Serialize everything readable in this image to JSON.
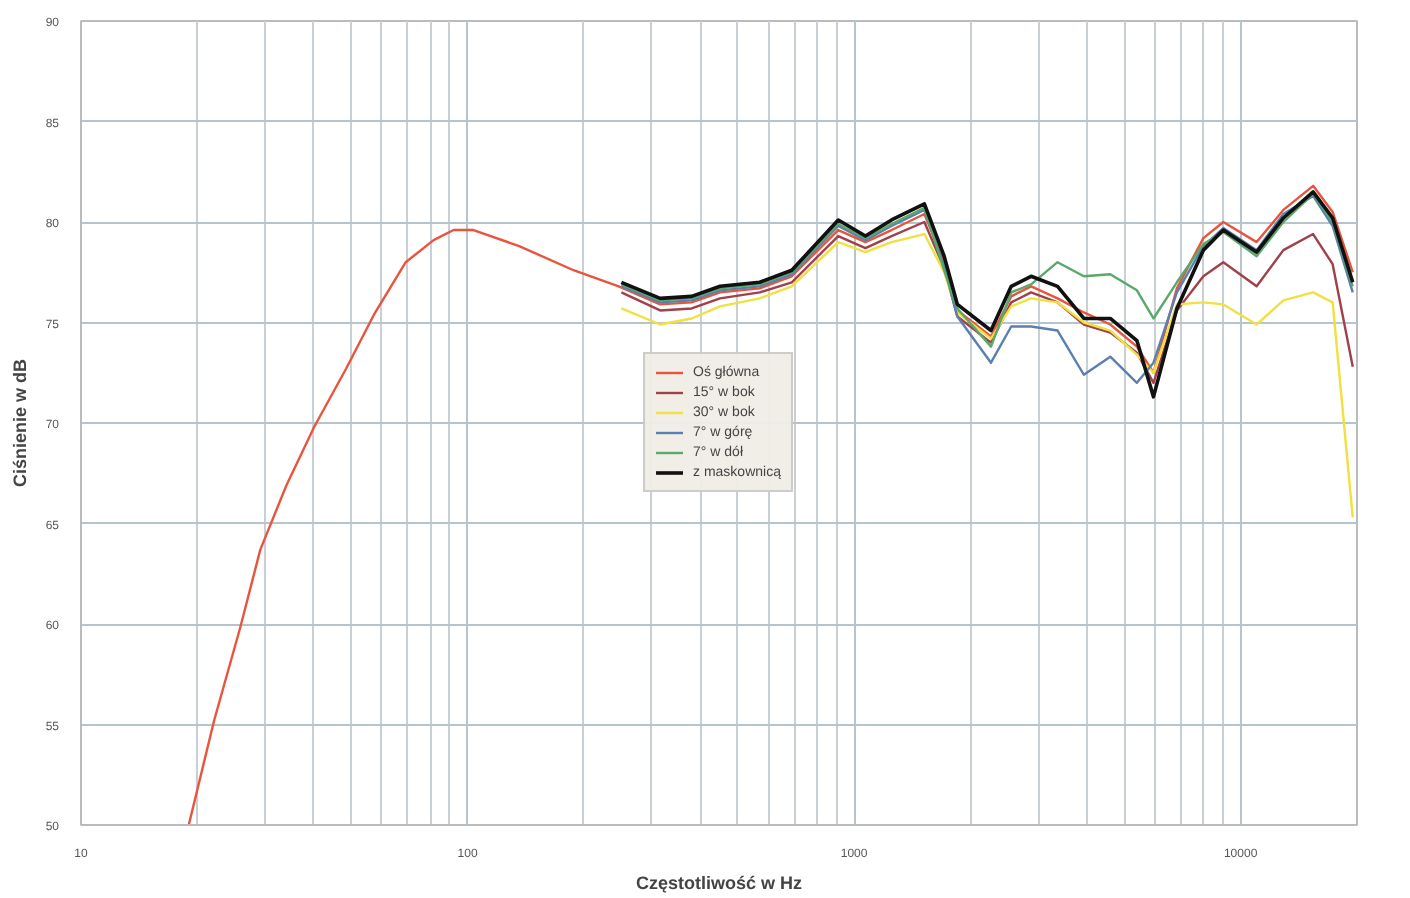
{
  "chart_data": {
    "type": "line",
    "xlabel": "Częstotliwość w Hz",
    "ylabel": "Ciśnienie w dB",
    "log": "x",
    "grid": true,
    "legend": "center",
    "marker": "none",
    "line_style": "solid",
    "xlim": [
      10,
      20000
    ],
    "xticks": [
      10,
      100,
      1000,
      10000
    ],
    "ylim": [
      50,
      90
    ],
    "yticks": [
      50,
      55,
      60,
      65,
      70,
      75,
      80,
      85,
      90
    ],
    "x": [
      250,
      315,
      380,
      450,
      570,
      690,
      910,
      1070,
      1250,
      1520,
      1710,
      1850,
      2260,
      2550,
      2870,
      3360,
      3930,
      4600,
      5390,
      5950,
      6840,
      8010,
      9020,
      11000,
      12900,
      15400,
      17300,
      19500
    ],
    "series": [
      {
        "name": "Oś główna",
        "color": "#e8553e",
        "x": [
          19,
          22.1,
          25.8,
          29.1,
          34,
          40.1,
          48.5,
          57.3,
          69.2,
          81.7,
          92,
          103.6,
          136,
          188,
          246,
          315,
          380,
          450,
          570,
          690,
          910,
          1070,
          1250,
          1520,
          1710,
          1850,
          2260,
          2550,
          2870,
          3360,
          3930,
          4600,
          5390,
          5950,
          6840,
          8010,
          9020,
          11000,
          12900,
          15400,
          17300,
          19500
        ],
        "values": [
          50,
          55.2,
          59.8,
          63.7,
          66.9,
          69.8,
          72.7,
          75.4,
          78,
          79.1,
          79.6,
          79.6,
          78.8,
          77.6,
          76.8,
          75.9,
          76.0,
          76.5,
          76.7,
          77.3,
          79.6,
          79.0,
          79.6,
          80.4,
          78.0,
          75.6,
          74.3,
          76.3,
          76.8,
          76.2,
          75.5,
          74.9,
          73.8,
          72.5,
          76.7,
          79.2,
          80.0,
          79.0,
          80.6,
          81.8,
          80.5,
          77.5
        ]
      },
      {
        "name": "15° w bok",
        "color": "#a0404a",
        "values": [
          76.5,
          75.6,
          75.7,
          76.2,
          76.5,
          77.0,
          79.3,
          78.7,
          79.3,
          80.0,
          77.7,
          75.3,
          74.0,
          76.0,
          76.5,
          76.0,
          74.9,
          74.5,
          73.5,
          72.0,
          75.6,
          77.3,
          78.0,
          76.8,
          78.6,
          79.4,
          77.9,
          72.8
        ]
      },
      {
        "name": "30° w bok",
        "color": "#f0e040",
        "values": [
          75.7,
          74.9,
          75.2,
          75.8,
          76.2,
          76.8,
          79.0,
          78.5,
          79.0,
          79.4,
          77.5,
          75.5,
          74.2,
          75.8,
          76.2,
          76.0,
          75.0,
          74.6,
          73.4,
          72.5,
          75.9,
          76.0,
          75.9,
          74.9,
          76.1,
          76.5,
          76.0,
          65.3
        ]
      },
      {
        "name": "7° w górę",
        "color": "#5a7fb0",
        "values": [
          76.8,
          76.0,
          76.1,
          76.6,
          76.8,
          77.4,
          79.8,
          79.1,
          79.8,
          80.6,
          77.8,
          75.3,
          73.0,
          74.8,
          74.8,
          74.6,
          72.4,
          73.3,
          72.0,
          73.0,
          76.5,
          78.8,
          79.7,
          78.6,
          80.4,
          81.3,
          79.8,
          76.5
        ]
      },
      {
        "name": "7° w dół",
        "color": "#5aa86a",
        "values": [
          76.9,
          76.1,
          76.2,
          76.7,
          76.9,
          77.5,
          79.9,
          79.2,
          79.9,
          80.7,
          77.6,
          75.7,
          73.8,
          76.5,
          76.9,
          78.0,
          77.3,
          77.4,
          76.6,
          75.2,
          77.0,
          78.9,
          79.5,
          78.3,
          80.0,
          81.4,
          80.0,
          76.8
        ]
      },
      {
        "name": "z maskownicą",
        "color": "#111111",
        "values": [
          77.0,
          76.2,
          76.3,
          76.8,
          77.0,
          77.6,
          80.1,
          79.3,
          80.1,
          80.9,
          78.3,
          75.9,
          74.6,
          76.8,
          77.3,
          76.8,
          75.2,
          75.2,
          74.1,
          71.3,
          75.7,
          78.6,
          79.6,
          78.5,
          80.2,
          81.5,
          80.2,
          77.0
        ]
      }
    ]
  }
}
